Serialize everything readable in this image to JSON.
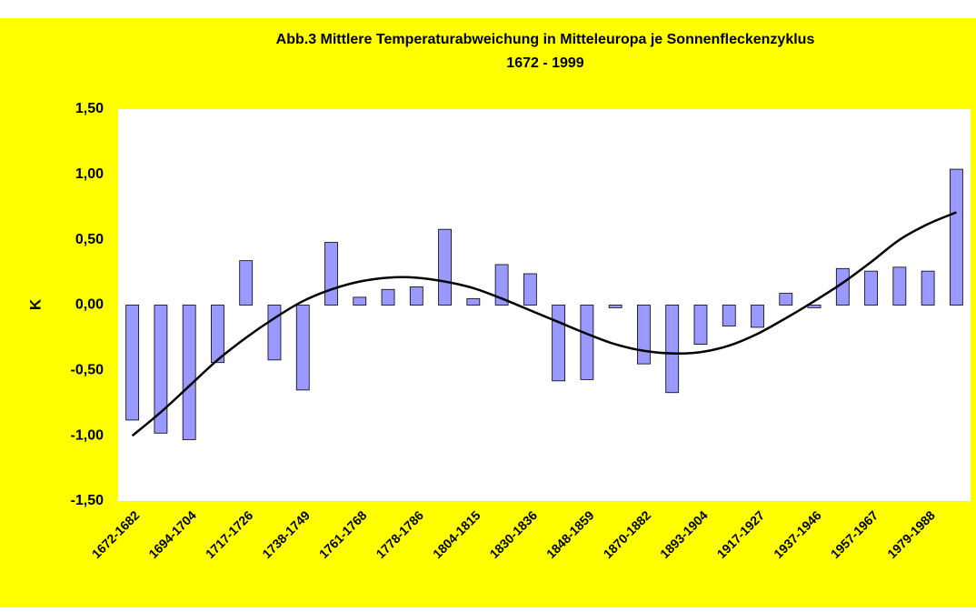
{
  "chart_data": {
    "type": "bar",
    "title": "Abb.3 Mittlere Temperaturabweichung in Mitteleuropa je Sonnenfleckenzyklus",
    "subtitle": "1672 - 1999",
    "y_label": "K",
    "categories": [
      "1672-1682",
      null,
      "1694-1704",
      null,
      "1717-1726",
      null,
      "1738-1749",
      null,
      "1761-1768",
      null,
      "1778-1786",
      null,
      "1804-1815",
      null,
      "1830-1836",
      null,
      "1848-1859",
      null,
      "1870-1882",
      null,
      "1893-1904",
      null,
      "1917-1927",
      null,
      "1937-1946",
      null,
      "1957-1967",
      null,
      "1979-1988",
      null
    ],
    "values": [
      -0.88,
      -0.98,
      -1.03,
      -0.44,
      0.34,
      -0.42,
      -0.65,
      0.48,
      0.06,
      0.12,
      0.14,
      0.58,
      0.05,
      0.31,
      0.24,
      -0.58,
      -0.57,
      -0.02,
      -0.45,
      -0.67,
      -0.3,
      -0.16,
      -0.17,
      0.09,
      -0.02,
      0.28,
      0.26,
      0.29,
      0.26,
      1.04
    ],
    "color": "#9999ff",
    "trend_values": [
      -1.0,
      -0.82,
      -0.62,
      -0.42,
      -0.25,
      -0.1,
      0.03,
      0.12,
      0.18,
      0.21,
      0.21,
      0.18,
      0.13,
      0.05,
      -0.04,
      -0.13,
      -0.22,
      -0.3,
      -0.35,
      -0.37,
      -0.36,
      -0.31,
      -0.22,
      -0.1,
      0.03,
      0.17,
      0.33,
      0.5,
      0.62,
      0.71
    ],
    "trend_color": "#000000",
    "ylim": [
      -1.5,
      1.5
    ],
    "yticks": [
      {
        "value": -1.5,
        "label": "-1,50"
      },
      {
        "value": -1.0,
        "label": "-1,00"
      },
      {
        "value": -0.5,
        "label": "-0,50"
      },
      {
        "value": 0,
        "label": "0,00"
      },
      {
        "value": 0.5,
        "label": "0,50"
      },
      {
        "value": 1.0,
        "label": "1,00"
      },
      {
        "value": 1.5,
        "label": "1,50"
      }
    ],
    "background": "#ffff00",
    "plot_background": "#ffffff"
  }
}
